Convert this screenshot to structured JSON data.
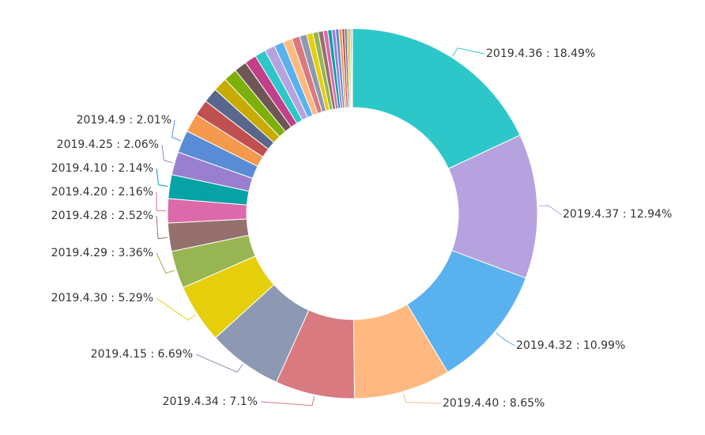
{
  "chart_data": {
    "type": "pie",
    "variant": "donut",
    "title": "",
    "slices": [
      {
        "label": "2019.4.36",
        "value": 18.49,
        "display": "2019.4.36 : 18.49%",
        "color": "#2ec7c9",
        "labeled": true
      },
      {
        "label": "2019.4.37",
        "value": 12.94,
        "display": "2019.4.37 : 12.94%",
        "color": "#b6a2de",
        "labeled": true
      },
      {
        "label": "2019.4.32",
        "value": 10.99,
        "display": "2019.4.32 : 10.99%",
        "color": "#5ab1ef",
        "labeled": true
      },
      {
        "label": "2019.4.40",
        "value": 8.65,
        "display": "2019.4.40 : 8.65%",
        "color": "#ffb980",
        "labeled": true
      },
      {
        "label": "2019.4.34",
        "value": 7.1,
        "display": "2019.4.34 : 7.1%",
        "color": "#d87a80",
        "labeled": true
      },
      {
        "label": "2019.4.15",
        "value": 6.69,
        "display": "2019.4.15 : 6.69%",
        "color": "#8d98b3",
        "labeled": true
      },
      {
        "label": "2019.4.30",
        "value": 5.29,
        "display": "2019.4.30 : 5.29%",
        "color": "#e5cf0d",
        "labeled": true
      },
      {
        "label": "2019.4.29",
        "value": 3.36,
        "display": "2019.4.29 : 3.36%",
        "color": "#97b552",
        "labeled": true
      },
      {
        "label": "2019.4.28",
        "value": 2.52,
        "display": "2019.4.28 : 2.52%",
        "color": "#95706d",
        "labeled": true
      },
      {
        "label": "2019.4.20",
        "value": 2.16,
        "display": "2019.4.20 : 2.16%",
        "color": "#dc69aa",
        "labeled": true
      },
      {
        "label": "2019.4.10",
        "value": 2.14,
        "display": "2019.4.10 : 2.14%",
        "color": "#07a2a4",
        "labeled": true
      },
      {
        "label": "2019.4.25",
        "value": 2.06,
        "display": "2019.4.25 : 2.06%",
        "color": "#9a7fd1",
        "labeled": true
      },
      {
        "label": "2019.4.9",
        "value": 2.01,
        "display": "2019.4.9 : 2.01%",
        "color": "#588dd5",
        "labeled": true
      },
      {
        "label": "",
        "value": 1.68,
        "color": "#f5994e",
        "labeled": false
      },
      {
        "label": "",
        "value": 1.44,
        "color": "#c05050",
        "labeled": false
      },
      {
        "label": "",
        "value": 1.32,
        "color": "#59678c",
        "labeled": false
      },
      {
        "label": "",
        "value": 1.26,
        "color": "#c9ab00",
        "labeled": false
      },
      {
        "label": "",
        "value": 1.2,
        "color": "#7eb00a",
        "labeled": false
      },
      {
        "label": "",
        "value": 1.12,
        "color": "#6f5553",
        "labeled": false
      },
      {
        "label": "",
        "value": 1.05,
        "color": "#c14089",
        "labeled": false
      },
      {
        "label": "",
        "value": 0.98,
        "color": "#2ec7c9",
        "labeled": false
      },
      {
        "label": "",
        "value": 0.92,
        "color": "#b6a2de",
        "labeled": false
      },
      {
        "label": "",
        "value": 0.86,
        "color": "#5ab1ef",
        "labeled": false
      },
      {
        "label": "",
        "value": 0.8,
        "color": "#ffb980",
        "labeled": false
      },
      {
        "label": "",
        "value": 0.72,
        "color": "#d87a80",
        "labeled": false
      },
      {
        "label": "",
        "value": 0.64,
        "color": "#8d98b3",
        "labeled": false
      },
      {
        "label": "",
        "value": 0.56,
        "color": "#e5cf0d",
        "labeled": false
      },
      {
        "label": "",
        "value": 0.5,
        "color": "#97b552",
        "labeled": false
      },
      {
        "label": "",
        "value": 0.44,
        "color": "#95706d",
        "labeled": false
      },
      {
        "label": "",
        "value": 0.4,
        "color": "#dc69aa",
        "labeled": false
      },
      {
        "label": "",
        "value": 0.36,
        "color": "#07a2a4",
        "labeled": false
      },
      {
        "label": "",
        "value": 0.33,
        "color": "#9a7fd1",
        "labeled": false
      },
      {
        "label": "",
        "value": 0.3,
        "color": "#588dd5",
        "labeled": false
      },
      {
        "label": "",
        "value": 0.27,
        "color": "#f5994e",
        "labeled": false
      },
      {
        "label": "",
        "value": 0.24,
        "color": "#c05050",
        "labeled": false
      },
      {
        "label": "",
        "value": 0.2,
        "color": "#59678c",
        "labeled": false
      },
      {
        "label": "",
        "value": 0.17,
        "color": "#c9ab00",
        "labeled": false
      },
      {
        "label": "",
        "value": 0.14,
        "color": "#7eb00a",
        "labeled": false
      },
      {
        "label": "",
        "value": 0.11,
        "color": "#6f5553",
        "labeled": false
      },
      {
        "label": "",
        "value": 0.08,
        "color": "#c14089",
        "labeled": false
      }
    ]
  }
}
